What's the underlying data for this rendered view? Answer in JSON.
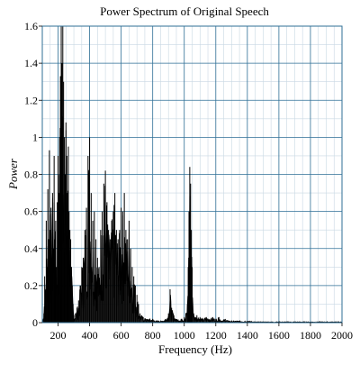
{
  "chart_data": {
    "type": "line",
    "title": "Power Spectrum of Original Speech",
    "xlabel": "Frequency (Hz)",
    "ylabel": "Power",
    "xlim": [
      100,
      2000
    ],
    "ylim": [
      0,
      1.6
    ],
    "grid": true,
    "x_ticks": [
      200,
      400,
      600,
      800,
      1000,
      1200,
      1400,
      1600,
      1800,
      2000
    ],
    "x_tick_labels": [
      "200",
      "400",
      "600",
      "800",
      "1000",
      "1200",
      "1400",
      "1600",
      "1800",
      "2000"
    ],
    "y_ticks": [
      0,
      0.2,
      0.4,
      0.6,
      0.8,
      1,
      1.2,
      1.4,
      1.6
    ],
    "y_tick_labels": [
      "0",
      "0.2",
      "0.4",
      "0.6",
      "0.8",
      "1",
      "1.2",
      "1.4",
      "1.6"
    ],
    "colors": {
      "line": "#000000",
      "grid": "#2f6f96",
      "frame": "#2f6f96",
      "background": "#ffffff"
    },
    "series": [
      {
        "x": [
          100,
          110,
          115,
          120,
          125,
          130,
          135,
          140,
          145,
          150,
          155,
          160,
          165,
          170,
          175,
          180,
          185,
          190,
          195,
          200,
          205,
          210,
          215,
          220,
          225,
          230,
          235,
          240,
          245,
          250,
          255,
          260,
          265,
          270,
          275,
          280,
          285,
          290,
          295,
          300,
          310,
          320,
          330,
          340,
          350,
          360,
          370,
          380,
          390,
          400,
          410,
          420,
          430,
          440,
          450,
          460,
          470,
          480,
          490,
          500,
          510,
          520,
          530,
          540,
          550,
          560,
          570,
          580,
          590,
          600,
          610,
          620,
          630,
          640,
          650,
          660,
          670,
          680,
          690,
          700,
          710,
          720,
          740,
          760,
          780,
          800,
          820,
          840,
          860,
          880,
          900,
          910,
          920,
          930,
          950,
          980,
          1000,
          1010,
          1020,
          1025,
          1030,
          1035,
          1040,
          1045,
          1050,
          1060,
          1070,
          1080,
          1100,
          1120,
          1140,
          1160,
          1180,
          1200,
          1220,
          1240,
          1260,
          1280,
          1300,
          1350,
          1400,
          1450,
          1500,
          1550,
          1600,
          1650,
          1700,
          1750,
          1800,
          1850,
          1900,
          1950,
          2000
        ],
        "values": [
          0.02,
          0.05,
          0.25,
          0.15,
          0.55,
          0.3,
          0.72,
          0.45,
          0.93,
          0.5,
          0.62,
          0.35,
          0.7,
          0.4,
          0.9,
          0.45,
          0.55,
          0.3,
          0.65,
          0.9,
          0.7,
          1.0,
          1.33,
          1.6,
          1.4,
          1.6,
          1.3,
          1.0,
          0.8,
          1.08,
          0.9,
          0.7,
          0.95,
          0.6,
          0.5,
          0.45,
          0.3,
          0.2,
          0.1,
          0.04,
          0.05,
          0.08,
          0.12,
          0.2,
          0.3,
          0.35,
          0.5,
          0.62,
          0.9,
          1.0,
          0.7,
          0.55,
          0.6,
          0.45,
          0.35,
          0.3,
          0.5,
          0.6,
          0.75,
          0.82,
          0.65,
          0.5,
          0.45,
          0.55,
          0.6,
          0.7,
          0.5,
          0.45,
          0.5,
          0.62,
          0.6,
          0.7,
          0.5,
          0.45,
          0.55,
          0.4,
          0.3,
          0.25,
          0.2,
          0.15,
          0.1,
          0.05,
          0.03,
          0.02,
          0.02,
          0.02,
          0.01,
          0.01,
          0.01,
          0.02,
          0.05,
          0.18,
          0.08,
          0.05,
          0.02,
          0.02,
          0.03,
          0.05,
          0.1,
          0.3,
          0.6,
          0.84,
          0.75,
          0.5,
          0.3,
          0.05,
          0.03,
          0.04,
          0.03,
          0.02,
          0.03,
          0.02,
          0.03,
          0.02,
          0.03,
          0.01,
          0.02,
          0.01,
          0.01,
          0.01,
          0.01,
          0.005,
          0.005,
          0.005,
          0.005,
          0.005,
          0.005,
          0.005,
          0.005,
          0.005,
          0.005,
          0.005,
          0.005
        ]
      }
    ]
  }
}
